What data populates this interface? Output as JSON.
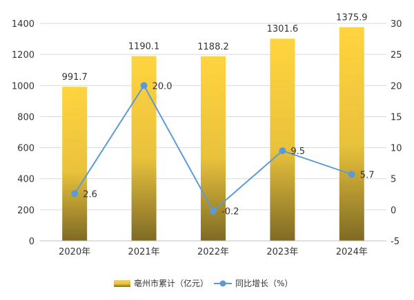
{
  "chart_data": {
    "type": "bar+line",
    "categories": [
      "2020年",
      "2021年",
      "2022年",
      "2023年",
      "2024年"
    ],
    "series": [
      {
        "name": "亳州市累计（亿元）",
        "type": "bar",
        "axis": "left",
        "values": [
          991.7,
          1190.1,
          1188.2,
          1301.6,
          1375.9
        ],
        "labels": [
          "991.7",
          "1190.1",
          "1188.2",
          "1301.6",
          "1375.9"
        ]
      },
      {
        "name": "同比增长（%）",
        "type": "line",
        "axis": "right",
        "values": [
          2.6,
          20.0,
          -0.2,
          9.5,
          5.7
        ],
        "labels": [
          "2.6",
          "20.0",
          "-0.2",
          "9.5",
          "5.7"
        ]
      }
    ],
    "y_left": {
      "min": 0,
      "max": 1400,
      "ticks": [
        "0",
        "200",
        "400",
        "600",
        "800",
        "1000",
        "1200",
        "1400"
      ]
    },
    "y_right": {
      "min": -5,
      "max": 30,
      "ticks": [
        "-5",
        "0",
        "5",
        "10",
        "15",
        "20",
        "25",
        "30"
      ]
    },
    "grid": true,
    "legend_position": "bottom",
    "colors": {
      "bar_top": "#ffd43f",
      "bar_mid": "#e9c23c",
      "bar_bottom": "#7e6a25",
      "line": "#5b9bd5",
      "grid": "#d9d9d9"
    }
  }
}
